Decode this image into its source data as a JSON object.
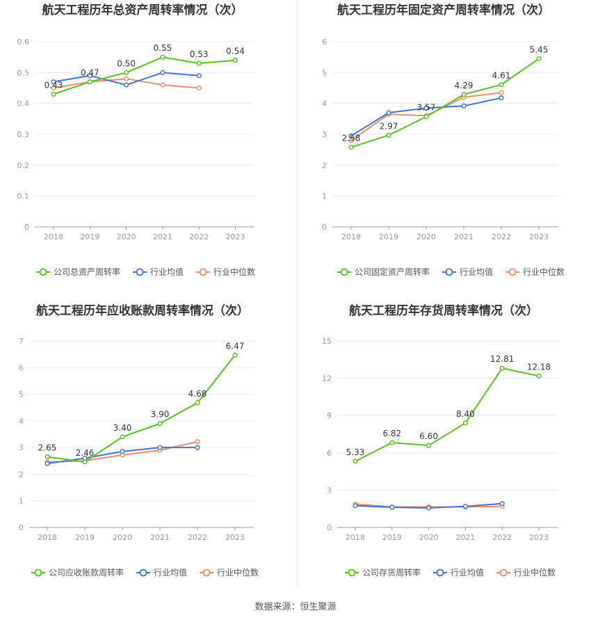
{
  "footer": {
    "source": "数据来源：恒生聚源"
  },
  "legend_labels": {
    "industry_avg": "行业均值",
    "industry_median": "行业中位数"
  },
  "colors": {
    "company": "#52c41a",
    "avg": "#3d73d8",
    "median": "#f08a68",
    "grid": "#e8ecf4",
    "axis": "#999999",
    "text": "#333333"
  },
  "chart_data": [
    {
      "type": "line",
      "title": "航天工程历年总资产周转率情况（次）",
      "categories": [
        "2018",
        "2019",
        "2020",
        "2021",
        "2022",
        "2023"
      ],
      "ylim": [
        0,
        0.6
      ],
      "yticks": [
        "0",
        "0.1",
        "0.2",
        "0.3",
        "0.4",
        "0.5",
        "0.6"
      ],
      "grid": true,
      "legend_position": "bottom",
      "series": [
        {
          "name": "公司总资产周转率",
          "values": [
            0.43,
            0.47,
            0.5,
            0.55,
            0.53,
            0.54
          ],
          "labels": [
            "0.43",
            "0.47",
            "0.50",
            "0.55",
            "0.53",
            "0.54"
          ]
        },
        {
          "name": "行业均值",
          "values": [
            0.47,
            0.49,
            0.46,
            0.5,
            0.49,
            null
          ]
        },
        {
          "name": "行业中位数",
          "values": [
            0.45,
            0.47,
            0.48,
            0.46,
            0.45,
            null
          ]
        }
      ]
    },
    {
      "type": "line",
      "title": "航天工程历年固定资产周转率情况（次）",
      "categories": [
        "2018",
        "2019",
        "2020",
        "2021",
        "2022",
        "2023"
      ],
      "ylim": [
        0,
        6
      ],
      "yticks": [
        "0",
        "1",
        "2",
        "3",
        "4",
        "5",
        "6"
      ],
      "grid": true,
      "legend_position": "bottom",
      "series": [
        {
          "name": "公司固定资产周转率",
          "values": [
            2.58,
            2.97,
            3.57,
            4.29,
            4.61,
            5.45
          ],
          "labels": [
            "2.58",
            "2.97",
            "3.57",
            "4.29",
            "4.61",
            "5.45"
          ]
        },
        {
          "name": "行业均值",
          "values": [
            2.95,
            3.7,
            3.85,
            3.92,
            4.18,
            null
          ]
        },
        {
          "name": "行业中位数",
          "values": [
            2.8,
            3.65,
            3.6,
            4.2,
            4.35,
            null
          ]
        }
      ]
    },
    {
      "type": "line",
      "title": "航天工程历年应收账款周转率情况（次）",
      "categories": [
        "2018",
        "2019",
        "2020",
        "2021",
        "2022",
        "2023"
      ],
      "ylim": [
        0,
        7
      ],
      "yticks": [
        "0",
        "1",
        "2",
        "3",
        "4",
        "5",
        "6",
        "7"
      ],
      "grid": true,
      "legend_position": "bottom",
      "series": [
        {
          "name": "公司应收账款周转率",
          "values": [
            2.65,
            2.46,
            3.4,
            3.9,
            4.68,
            6.47
          ],
          "labels": [
            "2.65",
            "2.46",
            "3.40",
            "3.90",
            "4.68",
            "6.47"
          ]
        },
        {
          "name": "行业均值",
          "values": [
            2.4,
            2.6,
            2.85,
            3.0,
            3.0,
            null
          ]
        },
        {
          "name": "行业中位数",
          "values": [
            2.45,
            2.5,
            2.72,
            2.9,
            3.22,
            null
          ]
        }
      ]
    },
    {
      "type": "line",
      "title": "航天工程历年存货周转率情况（次）",
      "categories": [
        "2018",
        "2019",
        "2020",
        "2021",
        "2022",
        "2023"
      ],
      "ylim": [
        0,
        15
      ],
      "yticks": [
        "0",
        "3",
        "6",
        "9",
        "12",
        "15"
      ],
      "grid": true,
      "legend_position": "bottom",
      "series": [
        {
          "name": "公司存货周转率",
          "values": [
            5.33,
            6.82,
            6.6,
            8.4,
            12.81,
            12.18
          ],
          "labels": [
            "5.33",
            "6.82",
            "6.60",
            "8.40",
            "12.81",
            "12.18"
          ]
        },
        {
          "name": "行业均值",
          "values": [
            1.75,
            1.62,
            1.57,
            1.7,
            1.92,
            null
          ]
        },
        {
          "name": "行业中位数",
          "values": [
            1.88,
            1.65,
            1.65,
            1.65,
            1.7,
            null
          ]
        }
      ]
    }
  ]
}
